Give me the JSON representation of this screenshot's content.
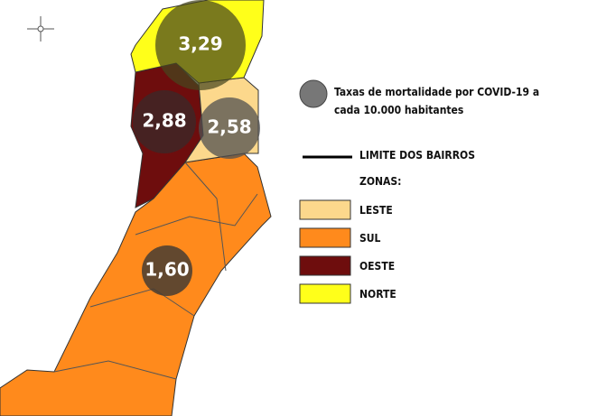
{
  "map": {
    "rates": [
      {
        "label": "3,29"
      },
      {
        "label": "2,88"
      },
      {
        "label": "2,58"
      },
      {
        "label": "1,60"
      }
    ],
    "legend": {
      "circle_text": [
        "Taxas de mortalidade por COVID-19 a",
        "cada 10.000 habitantes"
      ],
      "line_text": "LIMITE DOS BAIRROS",
      "zones_title": "ZONAS:",
      "zones": [
        {
          "name": "LESTE",
          "color": "#fcd88c"
        },
        {
          "name": "SUL",
          "color": "#ff8a1c"
        },
        {
          "name": "OESTE",
          "color": "#6e0d0d"
        },
        {
          "name": "NORTE",
          "color": "#ffff1a"
        }
      ]
    }
  }
}
